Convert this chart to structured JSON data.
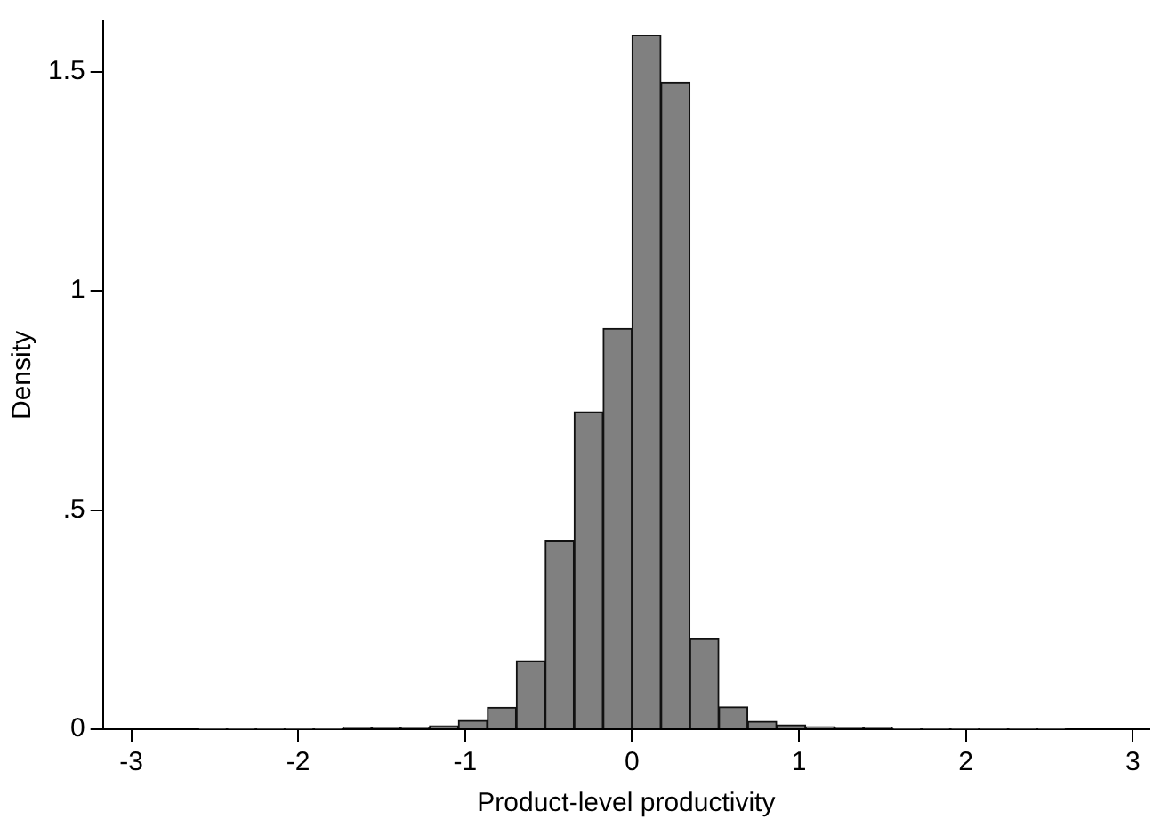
{
  "chart_data": {
    "type": "histogram",
    "xlabel": "Product-level productivity",
    "ylabel": "Density",
    "bins": [
      -2.6,
      -2.427,
      -2.253,
      -2.08,
      -1.907,
      -1.733,
      -1.56,
      -1.387,
      -1.213,
      -1.04,
      -0.867,
      -0.693,
      -0.52,
      -0.347,
      -0.173,
      0,
      0.173,
      0.347,
      0.52,
      0.693,
      0.867,
      1.04,
      1.213,
      1.387,
      1.56,
      1.733,
      1.907,
      2.08,
      2.253,
      2.427,
      2.6
    ],
    "values": [
      0.002,
      0.002,
      0.002,
      0.002,
      0.002,
      0.003,
      0.003,
      0.005,
      0.008,
      0.02,
      0.05,
      0.156,
      0.431,
      0.724,
      0.914,
      1.583,
      1.476,
      0.206,
      0.051,
      0.018,
      0.01,
      0.006,
      0.005,
      0.003,
      0.002,
      0.002,
      0.002,
      0.002,
      0.002,
      0.002
    ],
    "color": "#808080",
    "xlim": [
      -3.17,
      3.1
    ],
    "xticks": [
      -3,
      -2,
      -1,
      0,
      1,
      2,
      3
    ],
    "ylim": [
      0,
      1.615
    ],
    "yticks": [
      0,
      {
        "value": 0.5,
        "label": ".5"
      },
      1,
      {
        "value": 1.5,
        "label": "1.5"
      }
    ],
    "grid": false,
    "legend": false
  }
}
